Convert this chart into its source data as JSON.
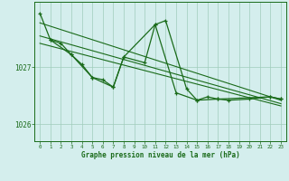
{
  "background_color": "#d4eeed",
  "grid_color": "#a0ccbb",
  "line_color": "#1a6b1a",
  "xlabel": "Graphe pression niveau de la mer (hPa)",
  "x_ticks": [
    0,
    1,
    2,
    3,
    4,
    5,
    6,
    7,
    8,
    9,
    10,
    11,
    12,
    13,
    14,
    15,
    16,
    17,
    18,
    19,
    20,
    21,
    22,
    23
  ],
  "ymin": 1025.7,
  "ymax": 1028.15,
  "yticks": [
    1026,
    1027
  ],
  "trend1_x": [
    0,
    23
  ],
  "trend1_y": [
    1027.78,
    1026.42
  ],
  "trend2_x": [
    0,
    23
  ],
  "trend2_y": [
    1027.55,
    1026.36
  ],
  "trend3_x": [
    0,
    23
  ],
  "trend3_y": [
    1027.42,
    1026.32
  ],
  "curve1_x": [
    0,
    1,
    2,
    3,
    4,
    5,
    6,
    7,
    8,
    10,
    11,
    12,
    14,
    15,
    16,
    17,
    18,
    20,
    22,
    23
  ],
  "curve1_y": [
    1027.95,
    1027.48,
    1027.42,
    1027.22,
    1027.05,
    1026.82,
    1026.78,
    1026.65,
    1027.18,
    1027.08,
    1027.75,
    1027.82,
    1026.62,
    1026.42,
    1026.48,
    1026.44,
    1026.42,
    1026.44,
    1026.48,
    1026.44
  ],
  "curve2_x": [
    1,
    3,
    5,
    7,
    8,
    11,
    13,
    15,
    17,
    22,
    23
  ],
  "curve2_y": [
    1027.48,
    1027.22,
    1026.82,
    1026.65,
    1027.18,
    1027.75,
    1026.55,
    1026.42,
    1026.44,
    1026.48,
    1026.44
  ]
}
